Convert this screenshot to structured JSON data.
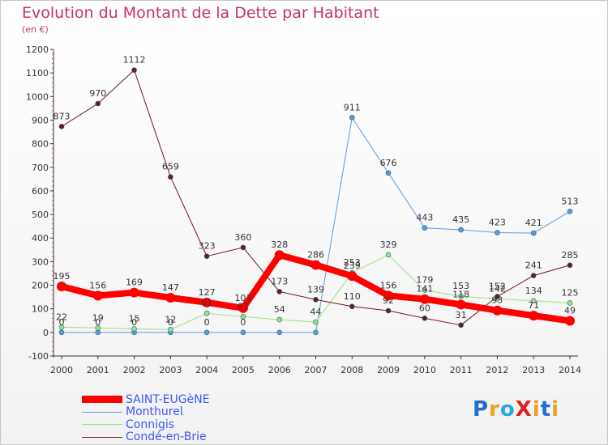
{
  "title": "Evolution du Montant de la Dette par Habitant",
  "unit_label": "(en €)",
  "chart_data": {
    "type": "line",
    "title": "Evolution du Montant de la Dette par Habitant",
    "subtitle": "(en €)",
    "x": [
      "2000",
      "2001",
      "2002",
      "2003",
      "2004",
      "2005",
      "2006",
      "2007",
      "2008",
      "2009",
      "2010",
      "2011",
      "2012",
      "2013",
      "2014"
    ],
    "y_ticks": [
      -100,
      0,
      100,
      200,
      300,
      400,
      500,
      600,
      700,
      800,
      900,
      1000,
      1100,
      1200
    ],
    "ylim": [
      -100,
      1200
    ],
    "grid": false,
    "legend_position": "bottom-left",
    "series": [
      {
        "name": "SAINT-EUGèNE",
        "color": "#ff0000",
        "width": 8,
        "values": [
          195,
          156,
          169,
          147,
          127,
          103,
          328,
          286,
          239,
          156,
          141,
          118,
          93,
          71,
          49
        ]
      },
      {
        "name": "Monthurel",
        "color": "#5f9ad6",
        "width": 1,
        "values": [
          0,
          0,
          0,
          0,
          0,
          0,
          0,
          0,
          911,
          676,
          443,
          435,
          423,
          421,
          513
        ]
      },
      {
        "name": "Connigis",
        "color": "#9be07c",
        "width": 1,
        "values": [
          22,
          19,
          15,
          12,
          81,
          67,
          54,
          44,
          253,
          329,
          179,
          153,
          142,
          134,
          125
        ]
      },
      {
        "name": "Condé-en-Brie",
        "color": "#6e1a1a",
        "width": 1,
        "values": [
          873,
          970,
          1112,
          659,
          323,
          360,
          173,
          139,
          110,
          92,
          60,
          31,
          152,
          241,
          285
        ]
      }
    ],
    "point_labels": [
      {
        "series": 0,
        "texts": [
          "195",
          "156",
          "169",
          "147",
          "127",
          "103",
          "328",
          "286",
          "239",
          "156",
          "141",
          "118",
          "93",
          "71",
          "49"
        ]
      },
      {
        "series": 1,
        "texts": [
          "0",
          "0",
          "0",
          "0",
          "0",
          "0",
          "",
          "",
          "911",
          "676",
          "443",
          "435",
          "423",
          "421",
          "513"
        ]
      },
      {
        "series": 2,
        "texts": [
          "22",
          "19",
          "15",
          "12",
          "81",
          "67",
          "54",
          "44",
          "253",
          "329",
          "179",
          "153",
          "142",
          "134",
          "125"
        ]
      },
      {
        "series": 3,
        "texts": [
          "873",
          "970",
          "1112",
          "659",
          "323",
          "360",
          "173",
          "139",
          "110",
          "92",
          "60",
          "31",
          "152",
          "241",
          "285"
        ]
      }
    ]
  },
  "logo": {
    "text": "ProXiti",
    "colors": [
      "#1f6fd1",
      "#f0a020",
      "#29a9e1",
      "#e02020",
      "#f0a020",
      "#1f6fd1",
      "#f0a020"
    ]
  }
}
